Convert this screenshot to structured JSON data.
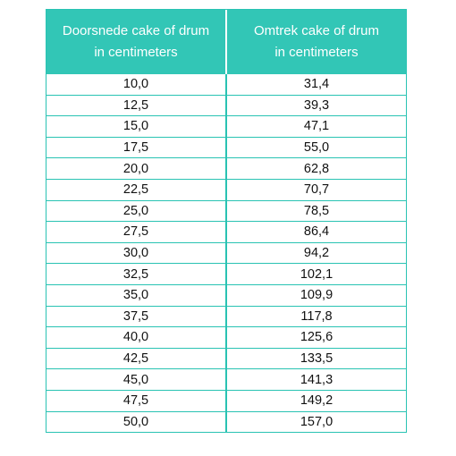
{
  "table": {
    "headers": [
      [
        "Doorsnede cake of drum",
        "in centimeters"
      ],
      [
        "Omtrek cake of drum",
        "in centimeters"
      ]
    ],
    "rows": [
      [
        "10,0",
        "31,4"
      ],
      [
        "12,5",
        "39,3"
      ],
      [
        "15,0",
        "47,1"
      ],
      [
        "17,5",
        "55,0"
      ],
      [
        "20,0",
        "62,8"
      ],
      [
        "22,5",
        "70,7"
      ],
      [
        "25,0",
        "78,5"
      ],
      [
        "27,5",
        "86,4"
      ],
      [
        "30,0",
        "94,2"
      ],
      [
        "32,5",
        "102,1"
      ],
      [
        "35,0",
        "109,9"
      ],
      [
        "37,5",
        "117,8"
      ],
      [
        "40,0",
        "125,6"
      ],
      [
        "42,5",
        "133,5"
      ],
      [
        "45,0",
        "141,3"
      ],
      [
        "47,5",
        "149,2"
      ],
      [
        "50,0",
        "157,0"
      ]
    ]
  },
  "colors": {
    "header_background": "#32c6b6",
    "header_text": "#ffffff",
    "grid_lines": "#29c3b3",
    "cell_text": "#111111"
  }
}
